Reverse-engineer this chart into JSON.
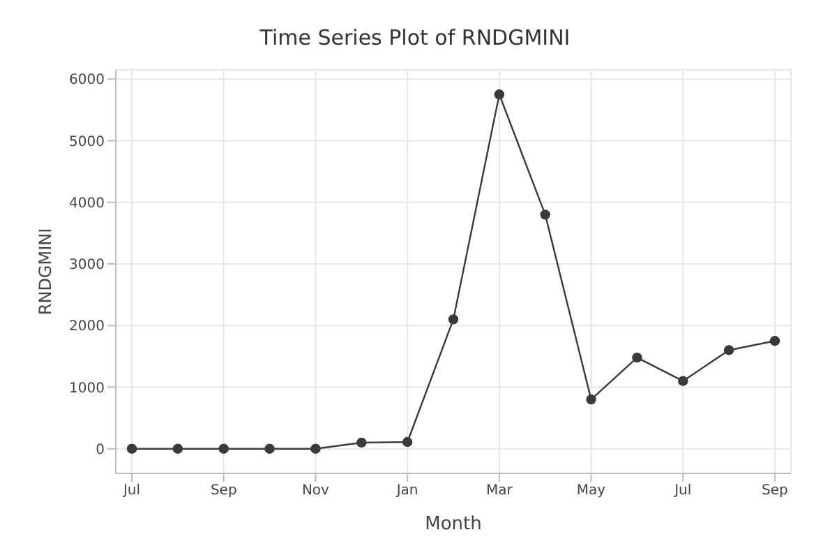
{
  "chart_data": {
    "type": "line",
    "title": "Time Series Plot of RNDGMINI",
    "xlabel": "Month",
    "ylabel": "RNDGMINI",
    "categories": [
      "Jul",
      null,
      "Sep",
      null,
      "Nov",
      null,
      "Jan",
      null,
      "Mar",
      null,
      "May",
      null,
      "Jul",
      null,
      "Sep"
    ],
    "series": [
      {
        "color": "#3a3a3a",
        "values": [
          0,
          0,
          0,
          0,
          0,
          100,
          110,
          2100,
          5750,
          3800,
          800,
          1480,
          1100,
          1600,
          1750
        ]
      }
    ],
    "ylim": [
      -400,
      6150
    ],
    "yticks": [
      0,
      1000,
      2000,
      3000,
      4000,
      5000,
      6000
    ],
    "grid": true,
    "marker": "circle",
    "line_style": "solid"
  }
}
